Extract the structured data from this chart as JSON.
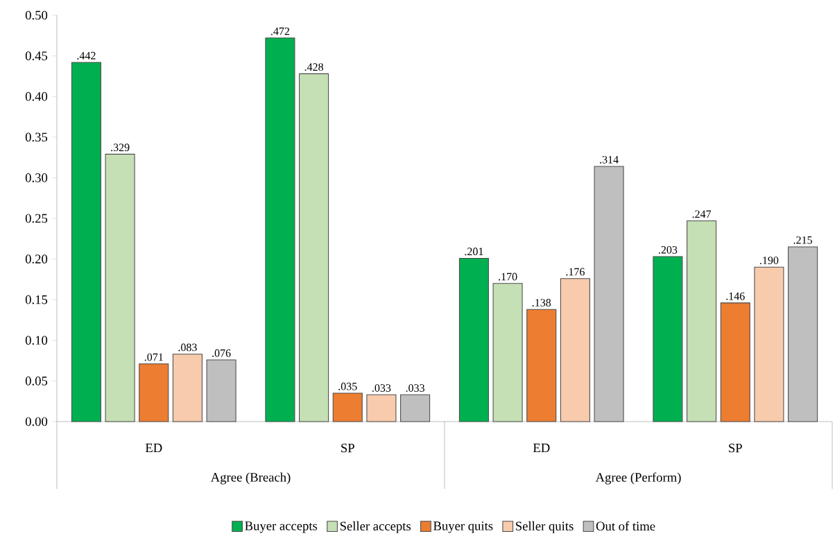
{
  "chart_data": {
    "type": "bar",
    "categories": [
      "ED",
      "SP",
      "ED",
      "SP"
    ],
    "series": [
      {
        "name": "Buyer accepts",
        "color": "#00b050",
        "values": [
          0.442,
          0.472,
          0.201,
          0.203
        ],
        "value_labels": [
          ".442",
          ".472",
          ".201",
          ".203"
        ]
      },
      {
        "name": "Seller accepts",
        "color": "#c5e0b4",
        "values": [
          0.329,
          0.428,
          0.17,
          0.247
        ],
        "value_labels": [
          ".329",
          ".428",
          ".170",
          ".247"
        ]
      },
      {
        "name": "Buyer quits",
        "color": "#ed7d31",
        "values": [
          0.071,
          0.035,
          0.138,
          0.146
        ],
        "value_labels": [
          ".071",
          ".035",
          ".138",
          ".146"
        ]
      },
      {
        "name": "Seller quits",
        "color": "#f8cbad",
        "values": [
          0.083,
          0.033,
          0.176,
          0.19
        ],
        "value_labels": [
          ".083",
          ".033",
          ".176",
          ".190"
        ]
      },
      {
        "name": "Out of time",
        "color": "#bfbfbf",
        "values": [
          0.076,
          0.033,
          0.314,
          0.215
        ],
        "value_labels": [
          ".076",
          ".033",
          ".314",
          ".215"
        ]
      }
    ],
    "annotations": [
      "Agree (Breach)",
      "Agree (Perform)"
    ],
    "ylim": [
      0,
      0.5
    ],
    "yticks": [
      {
        "value": 0,
        "label": "0.00"
      },
      {
        "value": 0.05,
        "label": "0.05"
      },
      {
        "value": 0.1,
        "label": "0.10"
      },
      {
        "value": 0.15,
        "label": "0.15"
      },
      {
        "value": 0.2,
        "label": "0.20"
      },
      {
        "value": 0.25,
        "label": "0.25"
      },
      {
        "value": 0.3,
        "label": "0.30"
      },
      {
        "value": 0.35,
        "label": "0.35"
      },
      {
        "value": 0.4,
        "label": "0.40"
      },
      {
        "value": 0.45,
        "label": "0.45"
      },
      {
        "value": 0.5,
        "label": "0.50"
      }
    ],
    "legend": "bottom"
  }
}
